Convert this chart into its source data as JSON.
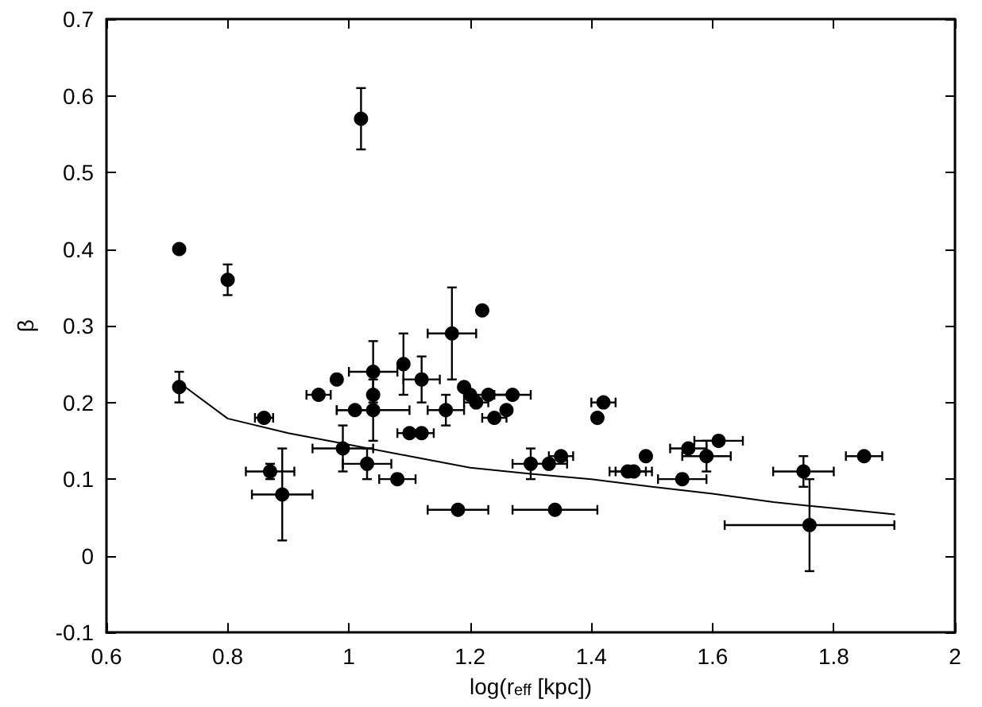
{
  "chart_data": {
    "type": "scatter",
    "xlabel": "log(r$_{eff}$ [kpc])",
    "ylabel": "β",
    "xlim": [
      0.6,
      2
    ],
    "xticks": [
      0.6,
      0.8,
      1,
      1.2,
      1.4,
      1.6,
      1.8,
      2
    ],
    "ylim": [
      -0.1,
      0.7
    ],
    "yticks": [
      -0.1,
      0,
      0.1,
      0.2,
      0.3,
      0.4,
      0.5,
      0.6,
      0.7
    ],
    "grid": false,
    "series": [
      {
        "marker": "circle",
        "color": "#000000",
        "x": [
          0.72,
          0.72,
          0.8,
          0.86,
          0.87,
          0.89,
          0.95,
          0.98,
          0.99,
          1.01,
          1.02,
          1.03,
          1.04,
          1.04,
          1.04,
          1.08,
          1.09,
          1.1,
          1.12,
          1.12,
          1.16,
          1.17,
          1.18,
          1.19,
          1.2,
          1.21,
          1.22,
          1.23,
          1.24,
          1.26,
          1.27,
          1.3,
          1.33,
          1.34,
          1.35,
          1.41,
          1.42,
          1.46,
          1.47,
          1.49,
          1.55,
          1.56,
          1.59,
          1.61,
          1.75,
          1.76,
          1.85
        ],
        "values": [
          0.4,
          0.22,
          0.36,
          0.18,
          0.11,
          0.08,
          0.21,
          0.23,
          0.14,
          0.19,
          0.57,
          0.12,
          0.21,
          0.19,
          0.24,
          0.1,
          0.25,
          0.16,
          0.16,
          0.23,
          0.19,
          0.29,
          0.06,
          0.22,
          0.21,
          0.2,
          0.32,
          0.21,
          0.18,
          0.19,
          0.21,
          0.12,
          0.12,
          0.06,
          0.13,
          0.18,
          0.2,
          0.11,
          0.11,
          0.13,
          0.1,
          0.14,
          0.13,
          0.15,
          0.11,
          0.04,
          0.13
        ],
        "errors": [
          null,
          0.02,
          0.02,
          null,
          0.01,
          0.06,
          null,
          null,
          0.03,
          null,
          0.04,
          0.02,
          null,
          0.04,
          0.04,
          null,
          0.04,
          null,
          null,
          0.03,
          0.02,
          0.06,
          null,
          null,
          null,
          null,
          null,
          null,
          null,
          null,
          null,
          0.02,
          null,
          null,
          null,
          null,
          null,
          null,
          null,
          null,
          null,
          null,
          0.02,
          null,
          0.02,
          0.06,
          null
        ],
        "xerrors": [
          null,
          null,
          null,
          0.015,
          0.04,
          0.05,
          0.02,
          null,
          0.05,
          0.03,
          null,
          0.04,
          null,
          0.06,
          0.04,
          0.03,
          null,
          0.02,
          0.02,
          0.03,
          0.03,
          0.04,
          0.05,
          null,
          null,
          0.02,
          null,
          0.04,
          0.02,
          null,
          0.03,
          0.03,
          0.03,
          0.07,
          0.02,
          null,
          0.02,
          0.03,
          0.03,
          null,
          0.04,
          0.03,
          0.04,
          0.04,
          0.05,
          0.14,
          0.03
        ]
      },
      {
        "type": "line",
        "marker": "none",
        "color": "#000000",
        "line_style": "solid",
        "x": [
          0.73,
          0.8,
          0.9,
          1.0,
          1.1,
          1.2,
          1.3,
          1.4,
          1.5,
          1.6,
          1.7,
          1.8,
          1.9
        ],
        "values": [
          0.22,
          0.179,
          0.16,
          0.145,
          0.13,
          0.115,
          0.107,
          0.1,
          0.09,
          0.081,
          0.07,
          0.062,
          0.054
        ]
      }
    ]
  }
}
